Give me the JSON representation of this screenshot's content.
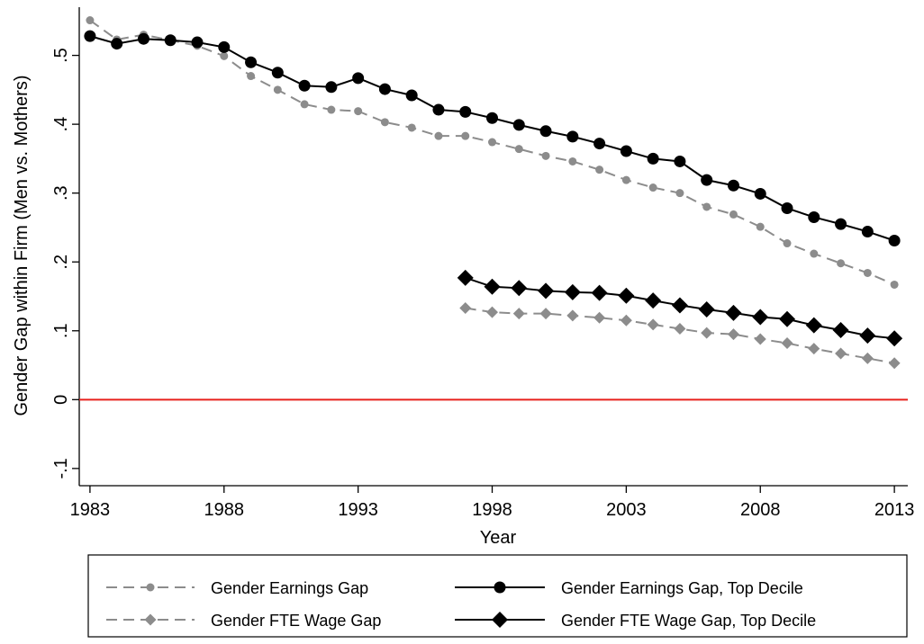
{
  "chart_data": {
    "type": "line",
    "x_label": "Year",
    "y_label": "Gender Gap within Firm (Men vs. Mothers)",
    "x": [
      1983,
      1984,
      1985,
      1986,
      1987,
      1988,
      1989,
      1990,
      1991,
      1992,
      1993,
      1994,
      1995,
      1996,
      1997,
      1998,
      1999,
      2000,
      2001,
      2002,
      2003,
      2004,
      2005,
      2006,
      2007,
      2008,
      2009,
      2010,
      2011,
      2012,
      2013
    ],
    "xlim": [
      1982.6,
      2013.5
    ],
    "xticks": [
      1983,
      1988,
      1993,
      1998,
      2003,
      2008,
      2013
    ],
    "ylim": [
      -0.125,
      0.57
    ],
    "yticks": [
      {
        "value": -0.1,
        "label": "-.1"
      },
      0,
      {
        "value": 0.1,
        "label": ".1"
      },
      {
        "value": 0.2,
        "label": ".2"
      },
      {
        "value": 0.3,
        "label": ".3"
      },
      {
        "value": 0.4,
        "label": ".4"
      },
      {
        "value": 0.5,
        "label": ".5"
      }
    ],
    "reference_line": {
      "value": 0,
      "color": "#e8211c"
    },
    "series": [
      {
        "name": "Gender Earnings Gap",
        "color": "#8c8c8c",
        "marker": "circle",
        "dashed": true,
        "values": [
          0.551,
          0.523,
          0.53,
          0.522,
          0.514,
          0.499,
          0.47,
          0.45,
          0.429,
          0.421,
          0.419,
          0.403,
          0.395,
          0.383,
          0.383,
          0.374,
          0.364,
          0.354,
          0.346,
          0.334,
          0.319,
          0.308,
          0.3,
          0.28,
          0.269,
          0.251,
          0.227,
          0.212,
          0.198,
          0.184,
          0.167
        ]
      },
      {
        "name": "Gender Earnings Gap, Top Decile",
        "color": "#000000",
        "marker": "circle",
        "dashed": false,
        "values": [
          0.528,
          0.517,
          0.524,
          0.522,
          0.519,
          0.512,
          0.49,
          0.475,
          0.456,
          0.454,
          0.467,
          0.451,
          0.442,
          0.421,
          0.418,
          0.409,
          0.399,
          0.39,
          0.382,
          0.372,
          0.361,
          0.35,
          0.346,
          0.319,
          0.311,
          0.299,
          0.278,
          0.265,
          0.255,
          0.244,
          0.231
        ]
      },
      {
        "name": "Gender FTE Wage Gap",
        "color": "#8c8c8c",
        "marker": "diamond",
        "dashed": true,
        "values": [
          null,
          null,
          null,
          null,
          null,
          null,
          null,
          null,
          null,
          null,
          null,
          null,
          null,
          null,
          0.133,
          0.127,
          0.125,
          0.125,
          0.122,
          0.119,
          0.115,
          0.109,
          0.103,
          0.097,
          0.095,
          0.088,
          0.082,
          0.074,
          0.067,
          0.06,
          0.053
        ]
      },
      {
        "name": "Gender FTE Wage Gap, Top Decile",
        "color": "#000000",
        "marker": "diamond",
        "dashed": false,
        "values": [
          null,
          null,
          null,
          null,
          null,
          null,
          null,
          null,
          null,
          null,
          null,
          null,
          null,
          null,
          0.177,
          0.164,
          0.162,
          0.158,
          0.156,
          0.155,
          0.151,
          0.144,
          0.137,
          0.131,
          0.126,
          0.12,
          0.117,
          0.108,
          0.101,
          0.093,
          0.089
        ]
      }
    ]
  }
}
